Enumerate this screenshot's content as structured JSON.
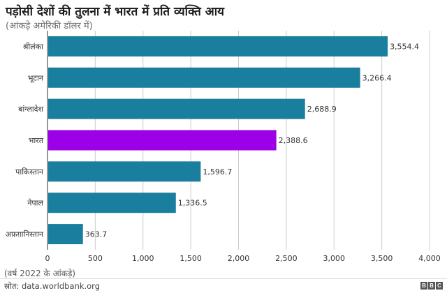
{
  "header": {
    "title": "पड़ोसी देशों की तुलना में भारत में प्रति व्यक्ति आय",
    "subtitle": "(आंकड़े अमेरिकी डॉलर में)"
  },
  "footer": {
    "note": "(वर्ष 2022 के आंकड़े)",
    "source": "स्रोत: data.worldbank.org",
    "logo_letters": [
      "B",
      "B",
      "C"
    ]
  },
  "chart_data": {
    "type": "bar",
    "orientation": "horizontal",
    "title": "पड़ोसी देशों की तुलना में भारत में प्रति व्यक्ति आय",
    "subtitle": "(आंकड़े अमेरिकी डॉलर में)",
    "categories": [
      "श्रीलंका",
      "भूटान",
      "बांग्लादेश",
      "भारत",
      "पाकिस्तान",
      "नेपाल",
      "अफ़ग़ानिस्तान"
    ],
    "values": [
      3554.4,
      3266.4,
      2688.9,
      2388.6,
      1596.7,
      1336.5,
      363.7
    ],
    "value_labels": [
      "3,554.4",
      "3,266.4",
      "2,688.9",
      "2,388.6",
      "1,596.7",
      "1,336.5",
      "363.7"
    ],
    "highlight": "भारत",
    "xlim": [
      0,
      4000
    ],
    "xticks": [
      0,
      500,
      1000,
      1500,
      2000,
      2500,
      3000,
      3500,
      4000
    ],
    "xtick_labels": [
      "0",
      "500",
      "1,000",
      "1,500",
      "2,000",
      "2,500",
      "3,000",
      "3,500",
      "4,000"
    ],
    "grid": true,
    "colors": {
      "default": "#1a7f9e",
      "highlight": "#9b00e6",
      "grid": "#cccccc"
    }
  }
}
